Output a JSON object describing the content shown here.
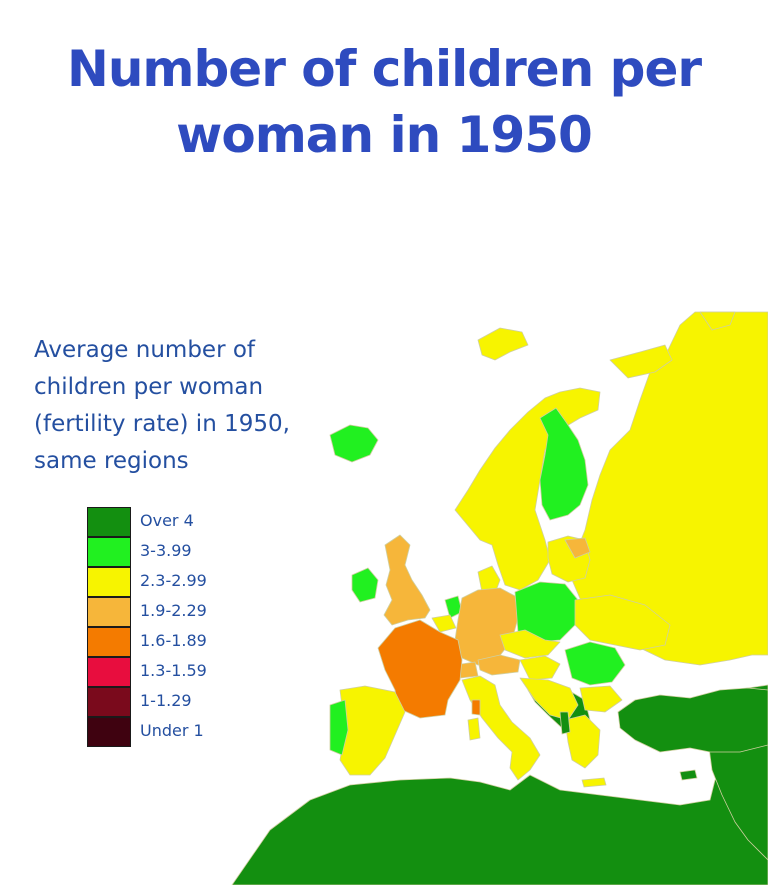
{
  "title": {
    "line1": "Number of children per",
    "line2": "woman in 1950"
  },
  "subtitle": {
    "lines": [
      "Average number of",
      "children per woman",
      "(fertility rate) in 1950,",
      "same regions"
    ]
  },
  "legend": {
    "items": [
      {
        "label": "Over 4",
        "color": "#138f10"
      },
      {
        "label": "3-3.99",
        "color": "#21f020"
      },
      {
        "label": "2.3-2.99",
        "color": "#f7f400"
      },
      {
        "label": "1.9-2.29",
        "color": "#f6b63a"
      },
      {
        "label": "1.6-1.89",
        "color": "#f47b00"
      },
      {
        "label": "1.3-1.59",
        "color": "#e80d3e"
      },
      {
        "label": "1-1.29",
        "color": "#7a0a1c"
      },
      {
        "label": "Under 1",
        "color": "#3f0210"
      }
    ]
  },
  "colors": {
    "title": "#2e4bbf",
    "subtitle": "#244fa0",
    "sea": "#ffffff"
  }
}
